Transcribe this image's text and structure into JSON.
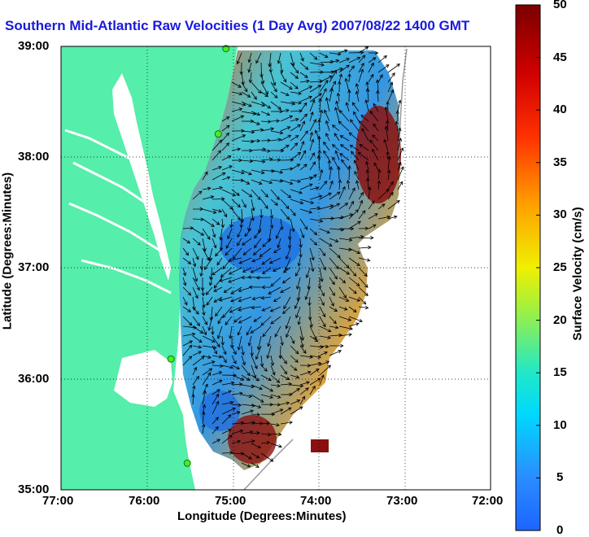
{
  "title": "Southern Mid-Atlantic Raw Velocities (1 Day Avg) 2007/08/22 1400 GMT",
  "map": {
    "xlabel": "Longitude (Degrees:Minutes)",
    "ylabel": "Latitude (Degrees:Minutes)",
    "x_ticks": [
      "77:00",
      "76:00",
      "75:00",
      "74:00",
      "73:00",
      "72:00"
    ],
    "y_ticks": [
      "39:00",
      "38:00",
      "37:00",
      "36:00",
      "35:00"
    ],
    "lon_range": [
      -77,
      -72
    ],
    "lat_range": [
      35,
      39
    ],
    "grid": true,
    "land_color": "#55eeaa",
    "water_color": "#ffffff"
  },
  "colorbar": {
    "label": "Surface Velocity (cm/s)",
    "ticks": [
      "50",
      "45",
      "40",
      "35",
      "30",
      "25",
      "20",
      "15",
      "10",
      "5",
      "0"
    ],
    "range": [
      0,
      50
    ],
    "colormap": "jet"
  },
  "stations": [
    {
      "lon": -75.08,
      "lat": 38.98
    },
    {
      "lon": -75.17,
      "lat": 38.21
    },
    {
      "lon": -75.72,
      "lat": 36.18
    },
    {
      "lon": -75.53,
      "lat": 35.24
    }
  ]
}
